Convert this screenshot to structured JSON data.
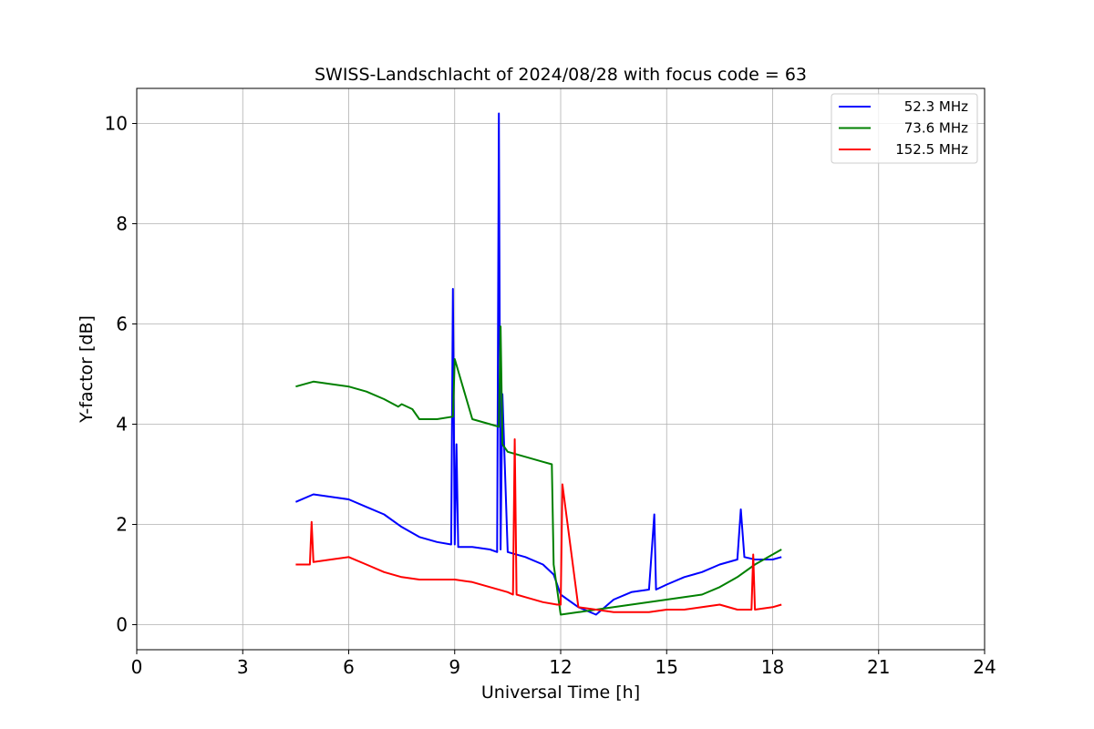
{
  "chart_data": {
    "type": "line",
    "title": "SWISS-Landschlacht of 2024/08/28 with focus code = 63",
    "xlabel": "Universal Time [h]",
    "ylabel": "Y-factor [dB]",
    "xlim": [
      0,
      24
    ],
    "ylim": [
      -0.5,
      10.7
    ],
    "xticks": [
      0,
      3,
      6,
      9,
      12,
      15,
      18,
      21,
      24
    ],
    "yticks": [
      0,
      2,
      4,
      6,
      8,
      10
    ],
    "grid": true,
    "legend_position": "top-right",
    "series": [
      {
        "name": "52.3 MHz",
        "color": "#0000ff",
        "x": [
          4.5,
          5.0,
          5.5,
          6.0,
          6.5,
          7.0,
          7.5,
          8.0,
          8.5,
          8.9,
          8.95,
          9.0,
          9.05,
          9.1,
          9.5,
          10.0,
          10.2,
          10.25,
          10.3,
          10.35,
          10.5,
          11.0,
          11.5,
          11.8,
          12.0,
          12.5,
          13.0,
          13.5,
          14.0,
          14.5,
          14.65,
          14.7,
          15.0,
          15.5,
          16.0,
          16.5,
          17.0,
          17.1,
          17.2,
          17.5,
          18.0,
          18.25
        ],
        "y": [
          2.45,
          2.6,
          2.55,
          2.5,
          2.35,
          2.2,
          1.95,
          1.75,
          1.65,
          1.6,
          6.7,
          1.6,
          3.6,
          1.55,
          1.55,
          1.5,
          1.45,
          10.2,
          1.5,
          4.6,
          1.45,
          1.35,
          1.2,
          1.0,
          0.6,
          0.35,
          0.2,
          0.5,
          0.65,
          0.7,
          2.2,
          0.7,
          0.8,
          0.95,
          1.05,
          1.2,
          1.3,
          2.3,
          1.35,
          1.3,
          1.3,
          1.35
        ]
      },
      {
        "name": "73.6 MHz",
        "color": "#008000",
        "x": [
          4.5,
          5.0,
          5.5,
          6.0,
          6.5,
          7.0,
          7.4,
          7.5,
          7.8,
          8.0,
          8.5,
          8.95,
          9.0,
          9.5,
          10.0,
          10.25,
          10.3,
          10.35,
          10.5,
          11.0,
          11.5,
          11.75,
          11.8,
          12.0,
          12.5,
          13.0,
          13.5,
          14.0,
          14.5,
          15.0,
          15.5,
          16.0,
          16.5,
          17.0,
          17.5,
          18.0,
          18.25
        ],
        "y": [
          4.75,
          4.85,
          4.8,
          4.75,
          4.65,
          4.5,
          4.35,
          4.4,
          4.3,
          4.1,
          4.1,
          4.15,
          5.3,
          4.1,
          4.0,
          3.95,
          5.95,
          3.6,
          3.45,
          3.35,
          3.25,
          3.2,
          1.2,
          0.2,
          0.25,
          0.3,
          0.35,
          0.4,
          0.45,
          0.5,
          0.55,
          0.6,
          0.75,
          0.95,
          1.2,
          1.4,
          1.5
        ]
      },
      {
        "name": "152.5 MHz",
        "color": "#ff0000",
        "x": [
          4.5,
          4.9,
          4.95,
          5.0,
          5.5,
          6.0,
          6.5,
          7.0,
          7.5,
          8.0,
          8.5,
          9.0,
          9.5,
          10.0,
          10.5,
          10.65,
          10.7,
          10.75,
          11.0,
          11.5,
          11.9,
          12.0,
          12.05,
          12.5,
          13.0,
          13.5,
          14.0,
          14.5,
          15.0,
          15.5,
          16.0,
          16.5,
          17.0,
          17.4,
          17.45,
          17.5,
          18.0,
          18.25
        ],
        "y": [
          1.2,
          1.2,
          2.05,
          1.25,
          1.3,
          1.35,
          1.2,
          1.05,
          0.95,
          0.9,
          0.9,
          0.9,
          0.85,
          0.75,
          0.65,
          0.6,
          3.7,
          0.6,
          0.55,
          0.45,
          0.4,
          0.4,
          2.8,
          0.35,
          0.3,
          0.25,
          0.25,
          0.25,
          0.3,
          0.3,
          0.35,
          0.4,
          0.3,
          0.3,
          1.4,
          0.3,
          0.35,
          0.4
        ]
      }
    ]
  }
}
